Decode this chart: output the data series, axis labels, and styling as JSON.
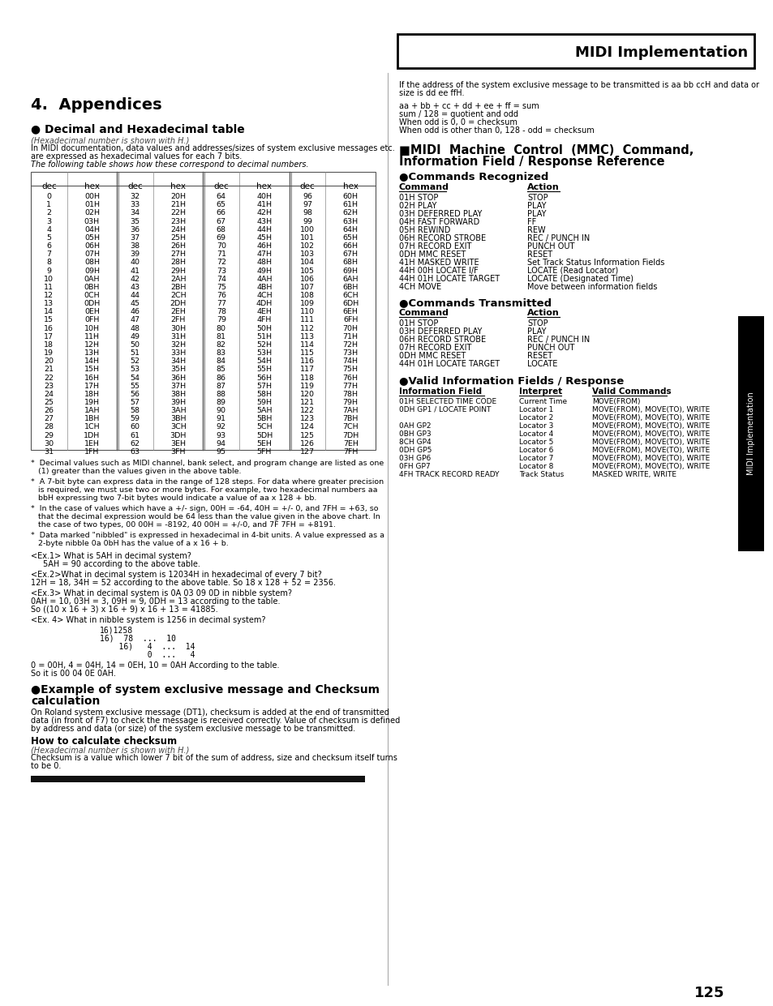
{
  "page_bg": "#ffffff",
  "header_box_color": "#000000",
  "header_text": "MIDI Implementation",
  "header_text_color": "#000000",
  "page_number": "125",
  "sidebar_text": "MIDI Implementation",
  "sidebar_bg": "#000000",
  "sidebar_text_color": "#ffffff",
  "sections": {
    "appendices_title": "4.  Appendices",
    "dec_hex_title": "● Decimal and Hexadecimal table",
    "dec_hex_subtitle": "(Hexadecimal number is shown with H.)",
    "dec_hex_body1": "In MIDI documentation, data values and addresses/sizes of system exclusive messages etc.",
    "dec_hex_body2": "are expressed as hexadecimal values for each 7 bits.",
    "dec_hex_body3": "The following table shows how these correspond to decimal numbers.",
    "table_data": [
      [
        0,
        "00H",
        32,
        "20H",
        64,
        "40H",
        96,
        "60H"
      ],
      [
        1,
        "01H",
        33,
        "21H",
        65,
        "41H",
        97,
        "61H"
      ],
      [
        2,
        "02H",
        34,
        "22H",
        66,
        "42H",
        98,
        "62H"
      ],
      [
        3,
        "03H",
        35,
        "23H",
        67,
        "43H",
        99,
        "63H"
      ],
      [
        4,
        "04H",
        36,
        "24H",
        68,
        "44H",
        100,
        "64H"
      ],
      [
        5,
        "05H",
        37,
        "25H",
        69,
        "45H",
        101,
        "65H"
      ],
      [
        6,
        "06H",
        38,
        "26H",
        70,
        "46H",
        102,
        "66H"
      ],
      [
        7,
        "07H",
        39,
        "27H",
        71,
        "47H",
        103,
        "67H"
      ],
      [
        8,
        "08H",
        40,
        "28H",
        72,
        "48H",
        104,
        "68H"
      ],
      [
        9,
        "09H",
        41,
        "29H",
        73,
        "49H",
        105,
        "69H"
      ],
      [
        10,
        "0AH",
        42,
        "2AH",
        74,
        "4AH",
        106,
        "6AH"
      ],
      [
        11,
        "0BH",
        43,
        "2BH",
        75,
        "4BH",
        107,
        "6BH"
      ],
      [
        12,
        "0CH",
        44,
        "2CH",
        76,
        "4CH",
        108,
        "6CH"
      ],
      [
        13,
        "0DH",
        45,
        "2DH",
        77,
        "4DH",
        109,
        "6DH"
      ],
      [
        14,
        "0EH",
        46,
        "2EH",
        78,
        "4EH",
        110,
        "6EH"
      ],
      [
        15,
        "0FH",
        47,
        "2FH",
        79,
        "4FH",
        111,
        "6FH"
      ],
      [
        16,
        "10H",
        48,
        "30H",
        80,
        "50H",
        112,
        "70H"
      ],
      [
        17,
        "11H",
        49,
        "31H",
        81,
        "51H",
        113,
        "71H"
      ],
      [
        18,
        "12H",
        50,
        "32H",
        82,
        "52H",
        114,
        "72H"
      ],
      [
        19,
        "13H",
        51,
        "33H",
        83,
        "53H",
        115,
        "73H"
      ],
      [
        20,
        "14H",
        52,
        "34H",
        84,
        "54H",
        116,
        "74H"
      ],
      [
        21,
        "15H",
        53,
        "35H",
        85,
        "55H",
        117,
        "75H"
      ],
      [
        22,
        "16H",
        54,
        "36H",
        86,
        "56H",
        118,
        "76H"
      ],
      [
        23,
        "17H",
        55,
        "37H",
        87,
        "57H",
        119,
        "77H"
      ],
      [
        24,
        "18H",
        56,
        "38H",
        88,
        "58H",
        120,
        "78H"
      ],
      [
        25,
        "19H",
        57,
        "39H",
        89,
        "59H",
        121,
        "79H"
      ],
      [
        26,
        "1AH",
        58,
        "3AH",
        90,
        "5AH",
        122,
        "7AH"
      ],
      [
        27,
        "1BH",
        59,
        "3BH",
        91,
        "5BH",
        123,
        "7BH"
      ],
      [
        28,
        "1CH",
        60,
        "3CH",
        92,
        "5CH",
        124,
        "7CH"
      ],
      [
        29,
        "1DH",
        61,
        "3DH",
        93,
        "5DH",
        125,
        "7DH"
      ],
      [
        30,
        "1EH",
        62,
        "3EH",
        94,
        "5EH",
        126,
        "7EH"
      ],
      [
        31,
        "1FH",
        63,
        "3FH",
        95,
        "5FH",
        127,
        "7FH"
      ]
    ],
    "cmd_recognized": [
      [
        "01H STOP",
        "STOP"
      ],
      [
        "02H PLAY",
        "PLAY"
      ],
      [
        "03H DEFERRED PLAY",
        "PLAY"
      ],
      [
        "04H FAST FORWARD",
        "FF"
      ],
      [
        "05H REWIND",
        "REW"
      ],
      [
        "06H RECORD STROBE",
        "REC / PUNCH IN"
      ],
      [
        "07H RECORD EXIT",
        "PUNCH OUT"
      ],
      [
        "0DH MMC RESET",
        "RESET"
      ],
      [
        "41H MASKED WRITE",
        "Set Track Status Information Fields"
      ],
      [
        "44H 00H LOCATE I/F",
        "LOCATE (Read Locator)"
      ],
      [
        "44H 01H LOCATE TARGET",
        "LOCATE (Designated Time)"
      ],
      [
        "4CH MOVE",
        "Move between information fields"
      ]
    ],
    "cmd_transmitted": [
      [
        "01H STOP",
        "STOP"
      ],
      [
        "03H DEFERRED PLAY",
        "PLAY"
      ],
      [
        "06H RECORD STROBE",
        "REC / PUNCH IN"
      ],
      [
        "07H RECORD EXIT",
        "PUNCH OUT"
      ],
      [
        "0DH MMC RESET",
        "RESET"
      ],
      [
        "44H 01H LOCATE TARGET",
        "LOCATE"
      ]
    ],
    "valid_fields": [
      [
        "01H SELECTED TIME CODE",
        "Current Time",
        "MOVE(FROM)"
      ],
      [
        "0DH GP1 / LOCATE POINT",
        "Locator 1",
        "MOVE(FROM), MOVE(TO), WRITE"
      ],
      [
        "",
        "Locator 2",
        "MOVE(FROM), MOVE(TO), WRITE"
      ],
      [
        "0AH GP2",
        "Locator 3",
        "MOVE(FROM), MOVE(TO), WRITE"
      ],
      [
        "0BH GP3",
        "Locator 4",
        "MOVE(FROM), MOVE(TO), WRITE"
      ],
      [
        "8CH GP4",
        "Locator 5",
        "MOVE(FROM), MOVE(TO), WRITE"
      ],
      [
        "0DH GP5",
        "Locator 6",
        "MOVE(FROM), MOVE(TO), WRITE"
      ],
      [
        "03H GP6",
        "Locator 7",
        "MOVE(FROM), MOVE(TO), WRITE"
      ],
      [
        "0FH GP7",
        "Locator 8",
        "MOVE(FROM), MOVE(TO), WRITE"
      ],
      [
        "4FH TRACK RECORD READY",
        "Track Status",
        "MASKED WRITE, WRITE"
      ]
    ]
  }
}
